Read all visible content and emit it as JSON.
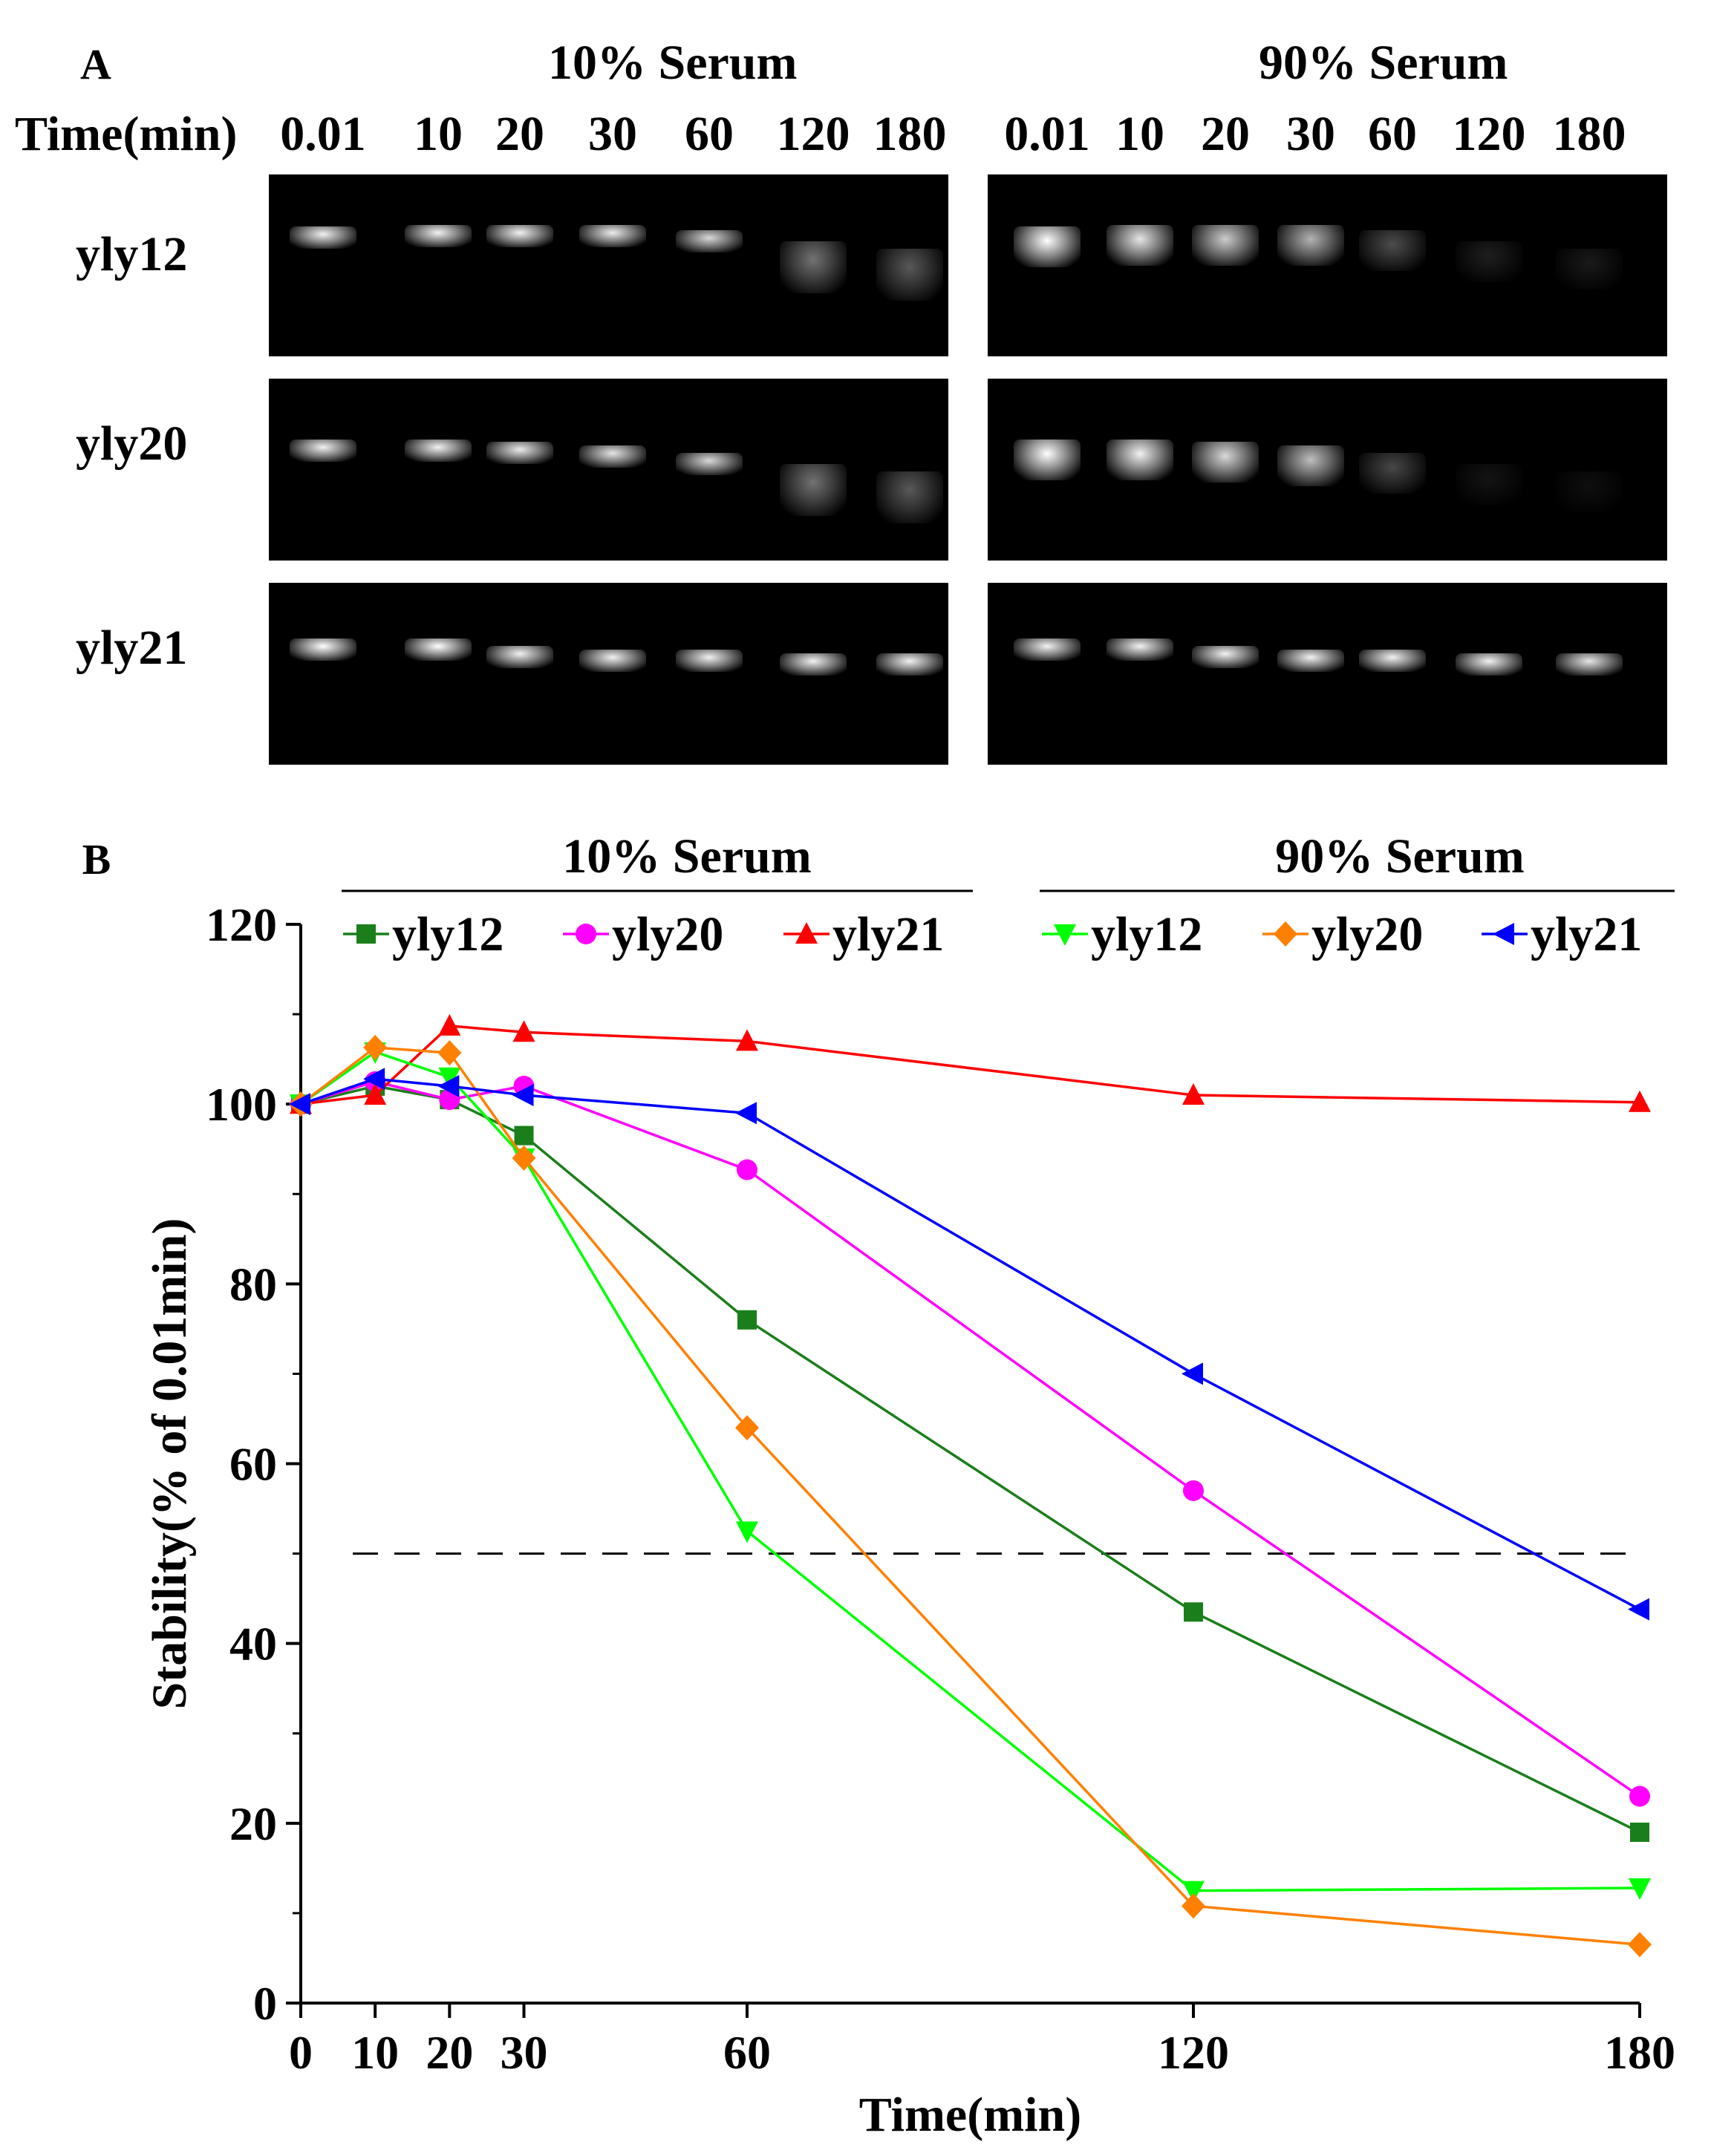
{
  "panel_a": {
    "label": "A",
    "time_label": "Time(min)",
    "groups": [
      {
        "title": "10% Serum",
        "times": [
          "0.01",
          "10",
          "20",
          "30",
          "60",
          "120",
          "180"
        ]
      },
      {
        "title": "90% Serum",
        "times": [
          "0.01",
          "10",
          "20",
          "30",
          "60",
          "120",
          "180"
        ]
      }
    ],
    "samples": [
      "yly12",
      "yly20",
      "yly21"
    ],
    "band_intensity_10": [
      [
        0.95,
        0.95,
        0.95,
        0.93,
        0.85,
        0.45,
        0.35
      ],
      [
        0.95,
        0.95,
        0.92,
        0.9,
        0.85,
        0.45,
        0.35
      ],
      [
        1.0,
        1.0,
        0.95,
        0.95,
        0.95,
        0.95,
        0.95
      ]
    ],
    "band_intensity_90": [
      [
        1.0,
        0.9,
        0.8,
        0.7,
        0.3,
        0.12,
        0.1
      ],
      [
        1.0,
        0.95,
        0.85,
        0.75,
        0.28,
        0.08,
        0.06
      ],
      [
        0.95,
        0.95,
        0.95,
        0.95,
        0.95,
        0.95,
        0.9
      ]
    ]
  },
  "chart_data": {
    "type": "line",
    "panel_label": "B",
    "group_titles": [
      "10% Serum",
      "90% Serum"
    ],
    "xlabel": "Time(min)",
    "ylabel": "Stability(% of 0.01min)",
    "x": [
      0,
      10,
      20,
      30,
      60,
      120,
      180
    ],
    "xticks": [
      0,
      10,
      20,
      30,
      60,
      120,
      180
    ],
    "xlim": [
      0,
      180
    ],
    "ylim": [
      0,
      120
    ],
    "yticks": [
      0,
      20,
      40,
      60,
      80,
      100,
      120
    ],
    "reference_line": {
      "y": 50,
      "style": "dashed"
    },
    "series": [
      {
        "name": "yly12",
        "group": "10% Serum",
        "color": "#1a7f1a",
        "marker": "square",
        "values": [
          100,
          102,
          100.5,
          96.5,
          76,
          43.5,
          19
        ]
      },
      {
        "name": "yly20",
        "group": "10% Serum",
        "color": "#ff00ff",
        "marker": "circle",
        "values": [
          100,
          102.5,
          100.5,
          102,
          92.7,
          57,
          23
        ]
      },
      {
        "name": "yly21",
        "group": "10% Serum",
        "color": "#ff0000",
        "marker": "triangle-up",
        "values": [
          100,
          101,
          108.7,
          108,
          107,
          101,
          100.2
        ]
      },
      {
        "name": "yly12",
        "group": "90% Serum",
        "color": "#00ff00",
        "marker": "triangle-down",
        "values": [
          100,
          105.8,
          103,
          94,
          52.5,
          12.5,
          12.8
        ]
      },
      {
        "name": "yly20",
        "group": "90% Serum",
        "color": "#ff8000",
        "marker": "diamond",
        "values": [
          100,
          106.3,
          105.7,
          94,
          64,
          10.8,
          6.5
        ]
      },
      {
        "name": "yly21",
        "group": "90% Serum",
        "color": "#0000ff",
        "marker": "triangle-left",
        "values": [
          100,
          102.8,
          102,
          101,
          99,
          70,
          43.8
        ]
      }
    ]
  }
}
